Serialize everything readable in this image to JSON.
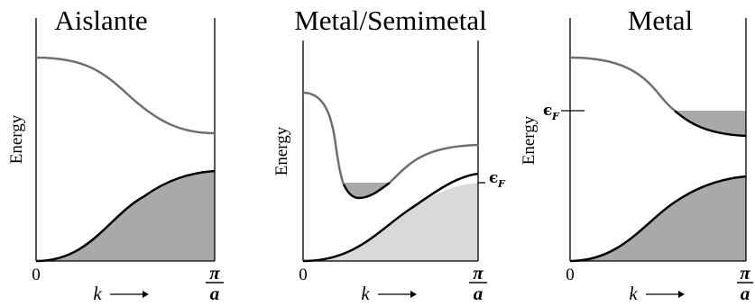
{
  "panels": [
    {
      "title": "Aislante",
      "ylabel": "Energy",
      "origin": "0",
      "xlabel": "k",
      "pi": "π",
      "a": "a"
    },
    {
      "title": "Metal/Semimetal",
      "ylabel": "Energy",
      "origin": "0",
      "xlabel": "k",
      "pi": "π",
      "a": "a",
      "fermi": "ϵ",
      "fermi_sub": "F"
    },
    {
      "title": "Metal",
      "ylabel": "Energy",
      "origin": "0",
      "xlabel": "k",
      "pi": "π",
      "a": "a",
      "fermi": "ϵ",
      "fermi_sub": "F"
    }
  ],
  "colors": {
    "upper_band": "#6f6f6f",
    "lower_band": "#000000",
    "filled": "#a9a9a9",
    "filled_light": "#d9d9d9",
    "axis": "#000000"
  }
}
